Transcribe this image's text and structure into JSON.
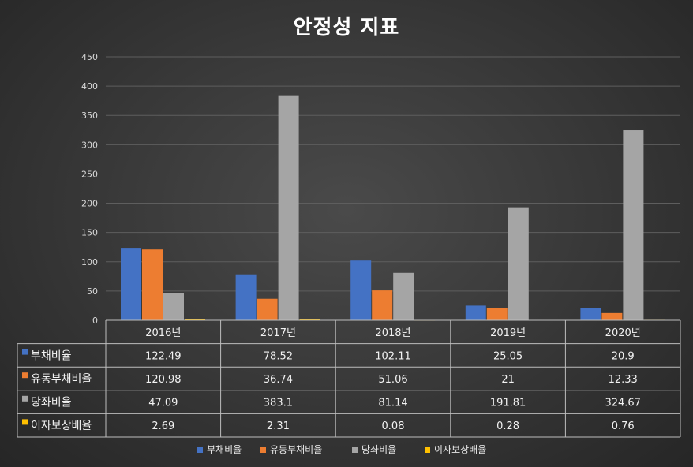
{
  "chart_data": {
    "type": "bar",
    "title": "안정성 지표",
    "categories": [
      "2016년",
      "2017년",
      "2018년",
      "2019년",
      "2020년"
    ],
    "series": [
      {
        "name": "부채비율",
        "color": "#4472c4",
        "values": [
          122.49,
          78.52,
          102.11,
          25.05,
          20.9
        ],
        "labels": [
          "122.49",
          "78.52",
          "102.11",
          "25.05",
          "20.9"
        ]
      },
      {
        "name": "유동부채비율",
        "color": "#ed7d31",
        "values": [
          120.98,
          36.74,
          51.06,
          21,
          12.33
        ],
        "labels": [
          "120.98",
          "36.74",
          "51.06",
          "21",
          "12.33"
        ]
      },
      {
        "name": "당좌비율",
        "color": "#a5a5a5",
        "values": [
          47.09,
          383.1,
          81.14,
          191.81,
          324.67
        ],
        "labels": [
          "47.09",
          "383.1",
          "81.14",
          "191.81",
          "324.67"
        ]
      },
      {
        "name": "이자보상배율",
        "color": "#ffc000",
        "values": [
          2.69,
          2.31,
          0.08,
          0.28,
          0.76
        ],
        "labels": [
          "2.69",
          "2.31",
          "0.08",
          "0.28",
          "0.76"
        ]
      }
    ],
    "ylim": [
      0,
      450
    ],
    "yticks": [
      0,
      50,
      100,
      150,
      200,
      250,
      300,
      350,
      400,
      450
    ],
    "ytick_labels": [
      "0",
      "50",
      "100",
      "150",
      "200",
      "250",
      "300",
      "350",
      "400",
      "450"
    ],
    "grid": true,
    "legend_position": "bottom",
    "data_table": true
  }
}
